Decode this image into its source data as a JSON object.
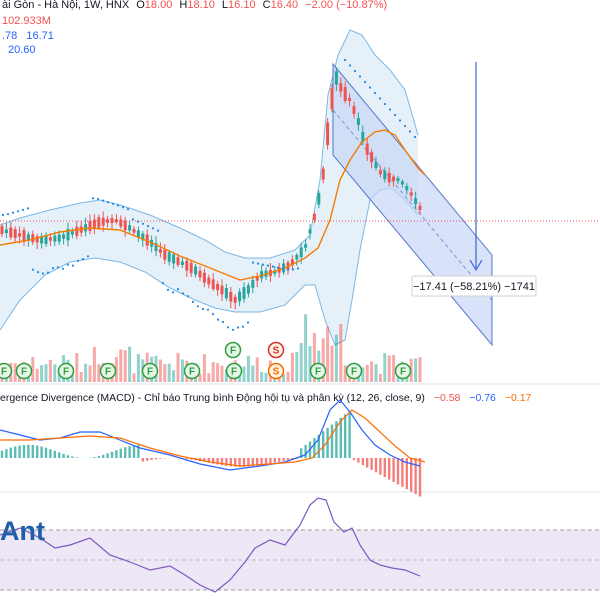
{
  "header": {
    "symbol_line": "ài Gòn - Hà Nội, 1W, HNX",
    "ohlc": [
      {
        "k": "O",
        "v": "18.00"
      },
      {
        "k": "H",
        "v": "18.10"
      },
      {
        "k": "L",
        "v": "16.10"
      },
      {
        "k": "C",
        "v": "16.40"
      }
    ],
    "change": "−2.00 (−10.87%)",
    "volume": "102.933M",
    "ind1_a": ".78",
    "ind1_b": "16.71",
    "ind2": "20.60"
  },
  "measure": {
    "label": "−17.41 (−58.21%) −1741"
  },
  "macd": {
    "title": "ergence Divergence (MACD) - Chỉ báo Trung bình Động hội tụ và phân kỳ (12, 26, close, 9)",
    "v_hist": "−0.58",
    "v_macd": "−0.76",
    "v_signal": "−0.17"
  },
  "watermark": "Ant",
  "markers": {
    "f_label": "F",
    "s_label": "S",
    "top_row": [
      "F",
      "S"
    ],
    "top_row_series": [
      "F",
      "S"
    ],
    "bottom_row": [
      "F",
      "F",
      "F",
      "F",
      "F",
      "F",
      "F",
      "S",
      "F",
      "F",
      "F",
      "F"
    ]
  },
  "colors": {
    "up": "#26a69a",
    "down": "#ef5350",
    "bb_fill": "#cfe3f4",
    "bb_line": "#7cb8e6",
    "ma_orange": "#f57c00",
    "sar": "#1e88e5",
    "channel_fill": "#c7d6f5",
    "channel_line": "#5577cc",
    "rsi_bg": "#ede7f6",
    "rsi_line": "#7e57c2",
    "marker_green": "#2e9e3f",
    "marker_orange": "#ef6c00",
    "marker_red": "#d32f2f",
    "macd_blue": "#2962ff",
    "macd_orange": "#ff6d00",
    "last_price": "#ef5350"
  }
}
